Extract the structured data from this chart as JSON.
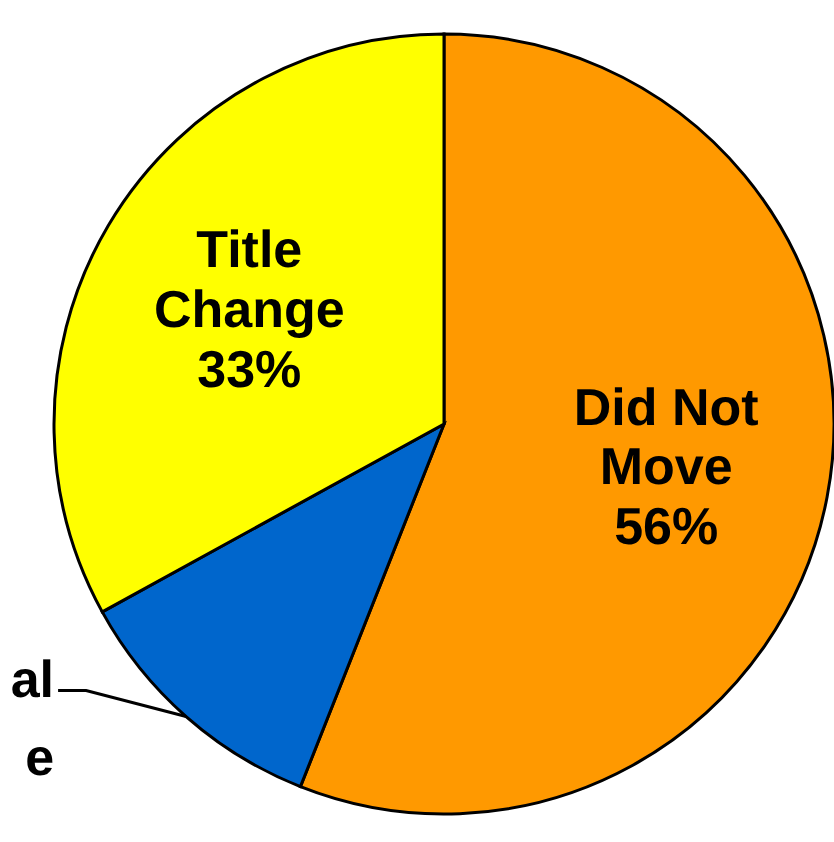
{
  "chart_data": {
    "type": "pie",
    "categories": [
      "Did Not\nMove",
      "al\ne",
      "Title\nChange"
    ],
    "values": [
      56,
      11,
      33
    ],
    "colors": [
      "#ff9900",
      "#0066cc",
      "#ffff00"
    ],
    "value_labels": [
      "56%",
      null,
      "33%"
    ],
    "legend": false
  }
}
